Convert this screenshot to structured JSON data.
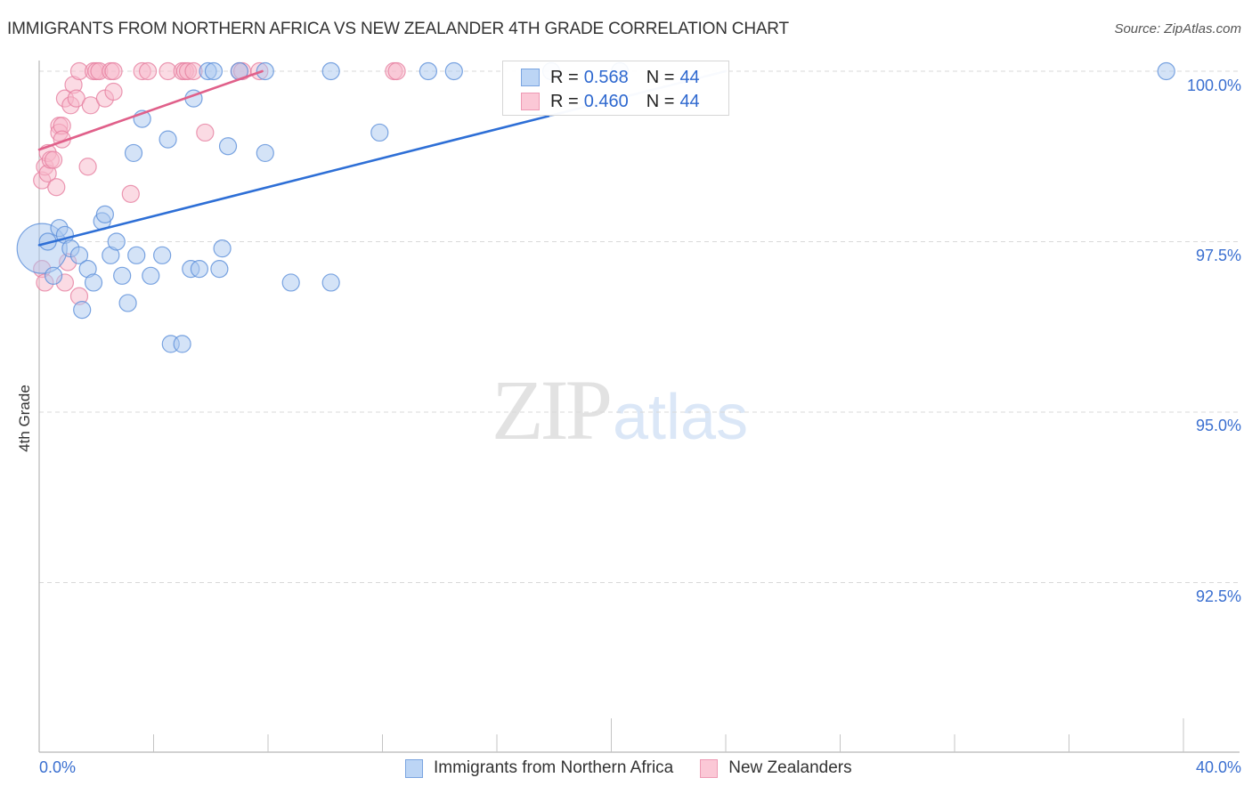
{
  "header": {
    "title": "IMMIGRANTS FROM NORTHERN AFRICA VS NEW ZEALANDER 4TH GRADE CORRELATION CHART",
    "source": "Source: ZipAtlas.com"
  },
  "legend": {
    "series": [
      {
        "name": "Immigrants from Northern Africa",
        "r_label": "R =",
        "r_value": "0.568",
        "n_label": "N =",
        "n_value": "44"
      },
      {
        "name": "New Zealanders",
        "r_label": "R =",
        "r_value": "0.460",
        "n_label": "N =",
        "n_value": "44"
      }
    ]
  },
  "axes": {
    "ylabel": "4th Grade",
    "yticks": [
      "100.0%",
      "97.5%",
      "95.0%",
      "92.5%"
    ],
    "xticks": [
      "0.0%",
      "40.0%"
    ]
  },
  "watermark": {
    "zip": "ZIP",
    "atlas": "atlas"
  },
  "colors": {
    "blue_fill": "#a9c8f0",
    "blue_stroke": "#5b8fd9",
    "blue_line": "#2e6fd6",
    "pink_fill": "#f7b8ca",
    "pink_stroke": "#e67fa0",
    "pink_line": "#e0608a",
    "tick_label": "#3a6fd0",
    "grid": "#d9d9d9"
  },
  "chart_data": {
    "type": "scatter",
    "title": "IMMIGRANTS FROM NORTHERN AFRICA VS NEW ZEALANDER 4TH GRADE CORRELATION CHART",
    "xlabel": "",
    "ylabel": "4th Grade",
    "xlim": [
      0,
      40
    ],
    "ylim": [
      90,
      100.4
    ],
    "x_tick_labels": [
      "0.0%",
      "40.0%"
    ],
    "y_tick_labels": [
      "100.0%",
      "97.5%",
      "95.0%",
      "92.5%"
    ],
    "y_tick_values": [
      100,
      97.5,
      95,
      92.5
    ],
    "grid": "horizontal dashed",
    "legend_position": "top-center inset + bottom",
    "series": [
      {
        "name": "Immigrants from Northern Africa",
        "R": 0.568,
        "N": 44,
        "trend": {
          "x0": 0.0,
          "y0": 97.45,
          "x1": 24.0,
          "y1": 100.0
        },
        "points": [
          {
            "x": 0.1,
            "y": 97.4,
            "size": 28
          },
          {
            "x": 0.5,
            "y": 97.0
          },
          {
            "x": 0.7,
            "y": 97.7
          },
          {
            "x": 0.9,
            "y": 97.6
          },
          {
            "x": 1.1,
            "y": 97.4
          },
          {
            "x": 1.4,
            "y": 97.3
          },
          {
            "x": 1.5,
            "y": 96.5
          },
          {
            "x": 1.7,
            "y": 97.1
          },
          {
            "x": 1.9,
            "y": 96.9
          },
          {
            "x": 2.2,
            "y": 97.8
          },
          {
            "x": 2.3,
            "y": 97.9
          },
          {
            "x": 2.5,
            "y": 97.3
          },
          {
            "x": 2.7,
            "y": 97.5
          },
          {
            "x": 2.9,
            "y": 97.0
          },
          {
            "x": 3.1,
            "y": 96.6
          },
          {
            "x": 3.3,
            "y": 98.8
          },
          {
            "x": 3.4,
            "y": 97.3
          },
          {
            "x": 3.6,
            "y": 99.3
          },
          {
            "x": 3.9,
            "y": 97.0
          },
          {
            "x": 4.3,
            "y": 97.3
          },
          {
            "x": 4.5,
            "y": 99.0
          },
          {
            "x": 4.6,
            "y": 96.0
          },
          {
            "x": 5.0,
            "y": 96.0
          },
          {
            "x": 5.3,
            "y": 97.1
          },
          {
            "x": 5.6,
            "y": 97.1
          },
          {
            "x": 5.4,
            "y": 99.6
          },
          {
            "x": 5.9,
            "y": 100.0
          },
          {
            "x": 6.1,
            "y": 100.0
          },
          {
            "x": 6.3,
            "y": 97.1
          },
          {
            "x": 6.4,
            "y": 97.4
          },
          {
            "x": 6.6,
            "y": 98.9
          },
          {
            "x": 7.0,
            "y": 100.0
          },
          {
            "x": 7.9,
            "y": 100.0
          },
          {
            "x": 7.9,
            "y": 98.8
          },
          {
            "x": 8.8,
            "y": 96.9
          },
          {
            "x": 10.2,
            "y": 100.0
          },
          {
            "x": 10.2,
            "y": 96.9
          },
          {
            "x": 11.9,
            "y": 99.1
          },
          {
            "x": 13.6,
            "y": 100.0
          },
          {
            "x": 14.5,
            "y": 100.0
          },
          {
            "x": 17.9,
            "y": 100.0
          },
          {
            "x": 20.3,
            "y": 100.0
          },
          {
            "x": 39.4,
            "y": 100.0
          },
          {
            "x": 0.3,
            "y": 97.5
          }
        ]
      },
      {
        "name": "New Zealanders",
        "R": 0.46,
        "N": 44,
        "trend": {
          "x0": 0.0,
          "y0": 98.85,
          "x1": 7.8,
          "y1": 100.0
        },
        "points": [
          {
            "x": 0.1,
            "y": 97.1
          },
          {
            "x": 0.1,
            "y": 98.4
          },
          {
            "x": 0.2,
            "y": 98.6
          },
          {
            "x": 0.3,
            "y": 98.5
          },
          {
            "x": 0.3,
            "y": 98.8
          },
          {
            "x": 0.4,
            "y": 98.7
          },
          {
            "x": 0.5,
            "y": 98.7
          },
          {
            "x": 0.6,
            "y": 98.3
          },
          {
            "x": 0.7,
            "y": 99.2
          },
          {
            "x": 0.7,
            "y": 99.1
          },
          {
            "x": 0.8,
            "y": 99.2
          },
          {
            "x": 0.8,
            "y": 99.0
          },
          {
            "x": 0.9,
            "y": 96.9
          },
          {
            "x": 0.9,
            "y": 99.6
          },
          {
            "x": 1.0,
            "y": 97.2
          },
          {
            "x": 1.1,
            "y": 99.5
          },
          {
            "x": 1.2,
            "y": 99.8
          },
          {
            "x": 1.3,
            "y": 99.6
          },
          {
            "x": 1.4,
            "y": 96.7
          },
          {
            "x": 1.4,
            "y": 100.0
          },
          {
            "x": 1.7,
            "y": 98.6
          },
          {
            "x": 1.8,
            "y": 99.5
          },
          {
            "x": 1.9,
            "y": 100.0
          },
          {
            "x": 2.0,
            "y": 100.0
          },
          {
            "x": 2.1,
            "y": 100.0
          },
          {
            "x": 2.3,
            "y": 99.6
          },
          {
            "x": 2.5,
            "y": 100.0
          },
          {
            "x": 2.6,
            "y": 100.0
          },
          {
            "x": 2.6,
            "y": 99.7
          },
          {
            "x": 3.2,
            "y": 98.2
          },
          {
            "x": 3.6,
            "y": 100.0
          },
          {
            "x": 3.8,
            "y": 100.0
          },
          {
            "x": 4.5,
            "y": 100.0
          },
          {
            "x": 5.0,
            "y": 100.0
          },
          {
            "x": 5.1,
            "y": 100.0
          },
          {
            "x": 5.2,
            "y": 100.0
          },
          {
            "x": 5.4,
            "y": 100.0
          },
          {
            "x": 5.8,
            "y": 99.1
          },
          {
            "x": 7.0,
            "y": 100.0
          },
          {
            "x": 7.1,
            "y": 100.0
          },
          {
            "x": 7.7,
            "y": 100.0
          },
          {
            "x": 12.4,
            "y": 100.0
          },
          {
            "x": 12.5,
            "y": 100.0
          },
          {
            "x": 0.2,
            "y": 96.9
          }
        ]
      }
    ]
  }
}
